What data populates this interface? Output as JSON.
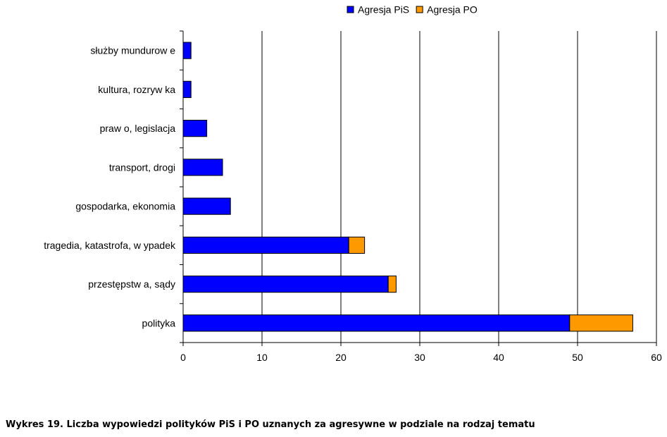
{
  "chart_data": {
    "type": "bar",
    "orientation": "horizontal",
    "stacked": true,
    "categories": [
      "służby mundurow e",
      "kultura, rozryw ka",
      "praw o, legislacja",
      "transport, drogi",
      "gospodarka, ekonomia",
      "tragedia, katastrofa, w ypadek",
      "przestępstw a, sądy",
      "polityka"
    ],
    "series": [
      {
        "name": "Agresja PiS",
        "color": "#0000FF",
        "values": [
          1,
          1,
          3,
          5,
          6,
          21,
          26,
          49
        ]
      },
      {
        "name": "Agresja PO",
        "color": "#FF9900",
        "values": [
          0,
          0,
          0,
          0,
          0,
          2,
          1,
          8
        ]
      }
    ],
    "xlim": [
      0,
      60
    ],
    "x_ticks": [
      "0",
      "10",
      "20",
      "30",
      "40",
      "50",
      "60"
    ],
    "grid": "vertical",
    "legend_position": "top"
  },
  "caption": "Wykres 19. Liczba wypowiedzi polityków PiS i PO uznanych za agresywne w podziale na rodzaj tematu"
}
